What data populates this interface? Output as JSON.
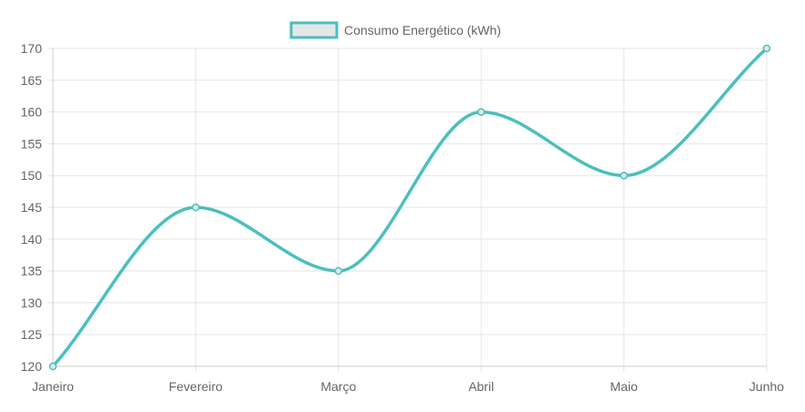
{
  "chart_data": {
    "type": "line",
    "categories": [
      "Janeiro",
      "Fevereiro",
      "Março",
      "Abril",
      "Maio",
      "Junho"
    ],
    "series": [
      {
        "name": "Consumo Energético (kWh)",
        "values": [
          120,
          145,
          135,
          160,
          150,
          170
        ]
      }
    ],
    "ylim": [
      120,
      170
    ],
    "yticks": [
      120,
      125,
      130,
      135,
      140,
      145,
      150,
      155,
      160,
      165,
      170
    ],
    "grid": true,
    "legend_position": "top-center",
    "curve": "smooth",
    "colors": {
      "line": "#4bbfbf",
      "legend_fill": "#e6e6e6",
      "grid": "#e5e5e5",
      "text": "#666666"
    }
  }
}
